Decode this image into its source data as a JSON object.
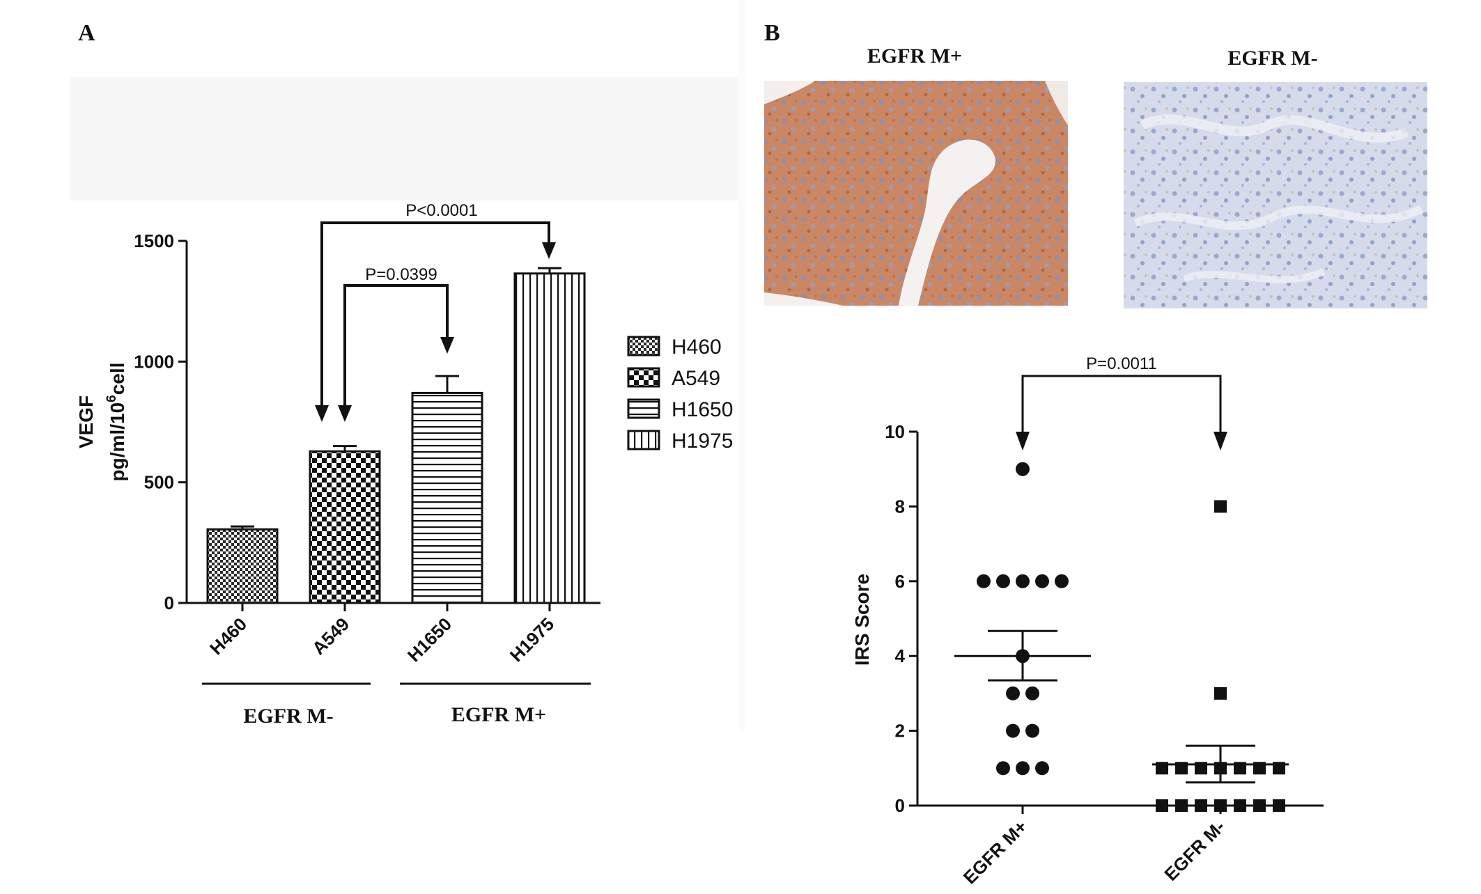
{
  "panel_a": {
    "letter": "A",
    "group_labels": [
      "EGFR M-",
      "EGFR M+"
    ],
    "p_values": [
      "P<0.0001",
      "P=0.0399"
    ]
  },
  "panel_b": {
    "letter": "B",
    "image_titles": [
      "EGFR M+",
      "EGFR M-"
    ],
    "image_colors": {
      "m_plus": "#c88363",
      "m_minus": "#c5cde0"
    },
    "p_value": "P=0.0011"
  },
  "chart_data": [
    {
      "type": "bar",
      "categories": [
        "H460",
        "A549",
        "H1650",
        "H1975"
      ],
      "values": [
        305,
        628,
        870,
        1365
      ],
      "errors": [
        12,
        22,
        70,
        22
      ],
      "ylabel_line1": "VEGF",
      "ylabel_line2_prefix": "pg/ml/10",
      "ylabel_line2_sup": "6",
      "ylabel_line2_suffix": "cell",
      "ylim": [
        0,
        1500
      ],
      "yticks": [
        0,
        500,
        1000,
        1500
      ],
      "legend": [
        "H460",
        "A549",
        "H1650",
        "H1975"
      ],
      "legend_position": "right",
      "patterns": [
        "fine-check",
        "coarse-check",
        "horizontal-lines",
        "vertical-lines"
      ],
      "grid": false
    },
    {
      "type": "scatter",
      "categories": [
        "EGFR M+",
        "EGFR M-"
      ],
      "ylabel": "IRS Score",
      "ylim": [
        0,
        10
      ],
      "yticks": [
        0,
        2,
        4,
        6,
        8,
        10
      ],
      "series": [
        {
          "category": "EGFR M+",
          "marker": "circle",
          "values": [
            9,
            6,
            6,
            6,
            6,
            6,
            4,
            3,
            3,
            2,
            2,
            1,
            1,
            1
          ],
          "mean": 4.0,
          "sem_low": 3.35,
          "sem_high": 4.67
        },
        {
          "category": "EGFR M-",
          "marker": "square",
          "values": [
            8,
            3,
            1,
            1,
            1,
            1,
            1,
            1,
            1,
            0,
            0,
            0,
            0,
            0,
            0,
            0
          ],
          "mean": 1.1,
          "sem_low": 0.62,
          "sem_high": 1.6
        }
      ],
      "grid": false
    }
  ]
}
